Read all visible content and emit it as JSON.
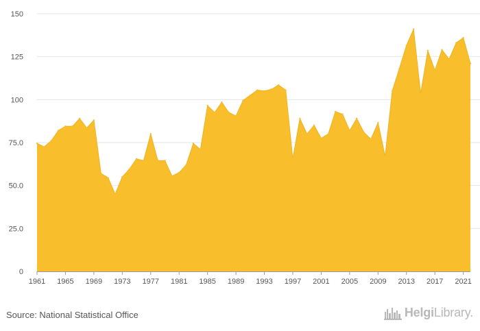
{
  "chart_data": {
    "type": "area",
    "title": "",
    "xlabel": "",
    "ylabel": "",
    "ylim": [
      0,
      150
    ],
    "y_ticks": [
      "0",
      "25.0",
      "50.0",
      "75.0",
      "100",
      "125",
      "150"
    ],
    "y_tick_values": [
      0,
      25,
      50,
      75,
      100,
      125,
      150
    ],
    "x_tick_labels": [
      "1961",
      "1965",
      "1969",
      "1973",
      "1977",
      "1981",
      "1985",
      "1989",
      "1993",
      "1997",
      "2001",
      "2005",
      "2009",
      "2013",
      "2017",
      "2021"
    ],
    "grid": "horizontal",
    "fill_color": "#F9BE2C",
    "x": [
      1961,
      1962,
      1963,
      1964,
      1965,
      1966,
      1967,
      1968,
      1969,
      1970,
      1971,
      1972,
      1973,
      1974,
      1975,
      1976,
      1977,
      1978,
      1979,
      1980,
      1981,
      1982,
      1983,
      1984,
      1985,
      1986,
      1987,
      1988,
      1989,
      1990,
      1991,
      1992,
      1993,
      1994,
      1995,
      1996,
      1997,
      1998,
      1999,
      2000,
      2001,
      2002,
      2003,
      2004,
      2005,
      2006,
      2007,
      2008,
      2009,
      2010,
      2011,
      2012,
      2013,
      2014,
      2015,
      2016,
      2017,
      2018,
      2019,
      2020,
      2021,
      2022
    ],
    "values": [
      74.5,
      72.5,
      76,
      82,
      84.5,
      84.5,
      89,
      83.5,
      88,
      57,
      54.5,
      45,
      55,
      59.5,
      65.5,
      64.5,
      80,
      64.5,
      64.5,
      55.5,
      57.5,
      62,
      74.5,
      71,
      96.5,
      92.5,
      98.5,
      92.5,
      90.5,
      99.5,
      102.5,
      105.5,
      105,
      106,
      108.5,
      105.5,
      65.5,
      89,
      80,
      85,
      77.5,
      80,
      93,
      91.5,
      82,
      89,
      81,
      77,
      86.5,
      67,
      105,
      118,
      131.5,
      141,
      103.5,
      128.5,
      117,
      129,
      123.5,
      133,
      136,
      121
    ]
  },
  "footer": {
    "source": "Source: National Statistical Office",
    "logo_bold": "Helgi",
    "logo_regular": "Library",
    "logo_dot": ".",
    "logo_icon": "factory-skyline-icon"
  }
}
